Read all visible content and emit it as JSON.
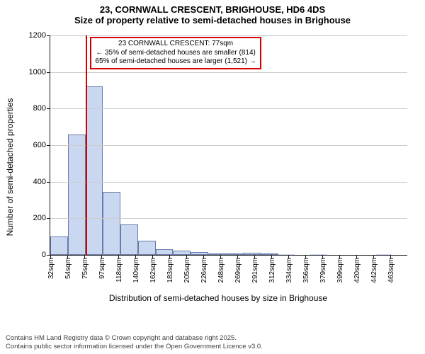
{
  "title": {
    "line1": "23, CORNWALL CRESCENT, BRIGHOUSE, HD6 4DS",
    "line2": "Size of property relative to semi-detached houses in Brighouse"
  },
  "chart": {
    "type": "histogram",
    "ylabel": "Number of semi-detached properties",
    "xlabel": "Distribution of semi-detached houses by size in Brighouse",
    "ylim": [
      0,
      1200
    ],
    "ytick_step": 200,
    "yticks": [
      0,
      200,
      400,
      600,
      800,
      1000,
      1200
    ],
    "xticks": [
      "32sqm",
      "54sqm",
      "75sqm",
      "97sqm",
      "118sqm",
      "140sqm",
      "162sqm",
      "183sqm",
      "205sqm",
      "226sqm",
      "248sqm",
      "269sqm",
      "291sqm",
      "312sqm",
      "334sqm",
      "356sqm",
      "379sqm",
      "399sqm",
      "420sqm",
      "442sqm",
      "463sqm"
    ],
    "values": [
      100,
      658,
      921,
      345,
      165,
      76,
      30,
      25,
      14,
      8,
      6,
      10,
      5,
      3,
      0,
      3,
      0,
      0,
      0,
      2,
      0
    ],
    "bar_fill": "#c9d7f0",
    "bar_border": "#6a7ba8",
    "grid_color": "#cccccc",
    "axis_color": "#111111",
    "background_color": "#ffffff",
    "marker": {
      "position_index": 2.1,
      "line_color": "#d40000",
      "line_width": 2,
      "box_border": "#d40000",
      "box_bg": "#ffffff",
      "line1": "23 CORNWALL CRESCENT: 77sqm",
      "line2": "← 35% of semi-detached houses are smaller (814)",
      "line3": "65% of semi-detached houses are larger (1,521) →"
    },
    "title_fontsize": 13,
    "label_fontsize": 12,
    "tick_fontsize": 11,
    "xtick_fontsize": 10
  },
  "footer": {
    "line1": "Contains HM Land Registry data © Crown copyright and database right 2025.",
    "line2": "Contains public sector information licensed under the Open Government Licence v3.0."
  }
}
